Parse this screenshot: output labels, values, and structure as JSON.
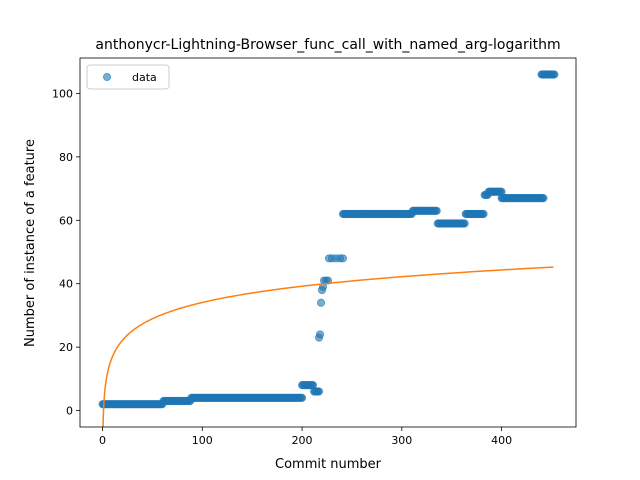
{
  "chart_data": {
    "type": "scatter",
    "title": "anthonycr-Lightning-Browser_func_call_with_named_arg-logarithm",
    "xlabel": "Commit number",
    "ylabel": "Number of instance of a feature",
    "xlim": [
      -22.6,
      474.6
    ],
    "ylim": [
      -5.2,
      111.2
    ],
    "xticks": [
      0,
      100,
      200,
      300,
      400
    ],
    "yticks": [
      0,
      20,
      40,
      60,
      80,
      100
    ],
    "legend": {
      "position": "top-left",
      "entries": [
        "data"
      ]
    },
    "colors": {
      "data": "#1f77b4",
      "fit": "#ff7f0e"
    },
    "series": [
      {
        "name": "data",
        "kind": "points",
        "segments": [
          {
            "from": 0,
            "to": 1,
            "y": 2
          },
          {
            "from": 2,
            "to": 60,
            "y": 2
          },
          {
            "from": 61,
            "to": 88,
            "y": 3
          },
          {
            "from": 89,
            "to": 200,
            "y": 4
          },
          {
            "from": 200,
            "to": 211,
            "y": 8
          },
          {
            "from": 212,
            "to": 217,
            "y": 6
          },
          {
            "from": 241,
            "to": 310,
            "y": 62
          },
          {
            "from": 311,
            "to": 335,
            "y": 63
          },
          {
            "from": 336,
            "to": 363,
            "y": 59
          },
          {
            "from": 364,
            "to": 382,
            "y": 62
          },
          {
            "from": 383,
            "to": 386,
            "y": 68
          },
          {
            "from": 387,
            "to": 400,
            "y": 69
          },
          {
            "from": 400,
            "to": 442,
            "y": 67
          },
          {
            "from": 440,
            "to": 453,
            "y": 106
          }
        ],
        "points": [
          {
            "x": 217,
            "y": 23
          },
          {
            "x": 218,
            "y": 24
          },
          {
            "x": 219,
            "y": 34
          },
          {
            "x": 220,
            "y": 38
          },
          {
            "x": 221,
            "y": 39
          },
          {
            "x": 222,
            "y": 41
          },
          {
            "x": 224,
            "y": 41
          },
          {
            "x": 226,
            "y": 41
          },
          {
            "x": 227,
            "y": 48
          },
          {
            "x": 230,
            "y": 48
          },
          {
            "x": 234,
            "y": 48
          },
          {
            "x": 238,
            "y": 48
          },
          {
            "x": 241,
            "y": 48
          }
        ]
      },
      {
        "name": "",
        "kind": "line",
        "model": "logarithm",
        "a": 7.4,
        "b": 0,
        "x_range": [
          0.02,
          452
        ]
      }
    ]
  }
}
